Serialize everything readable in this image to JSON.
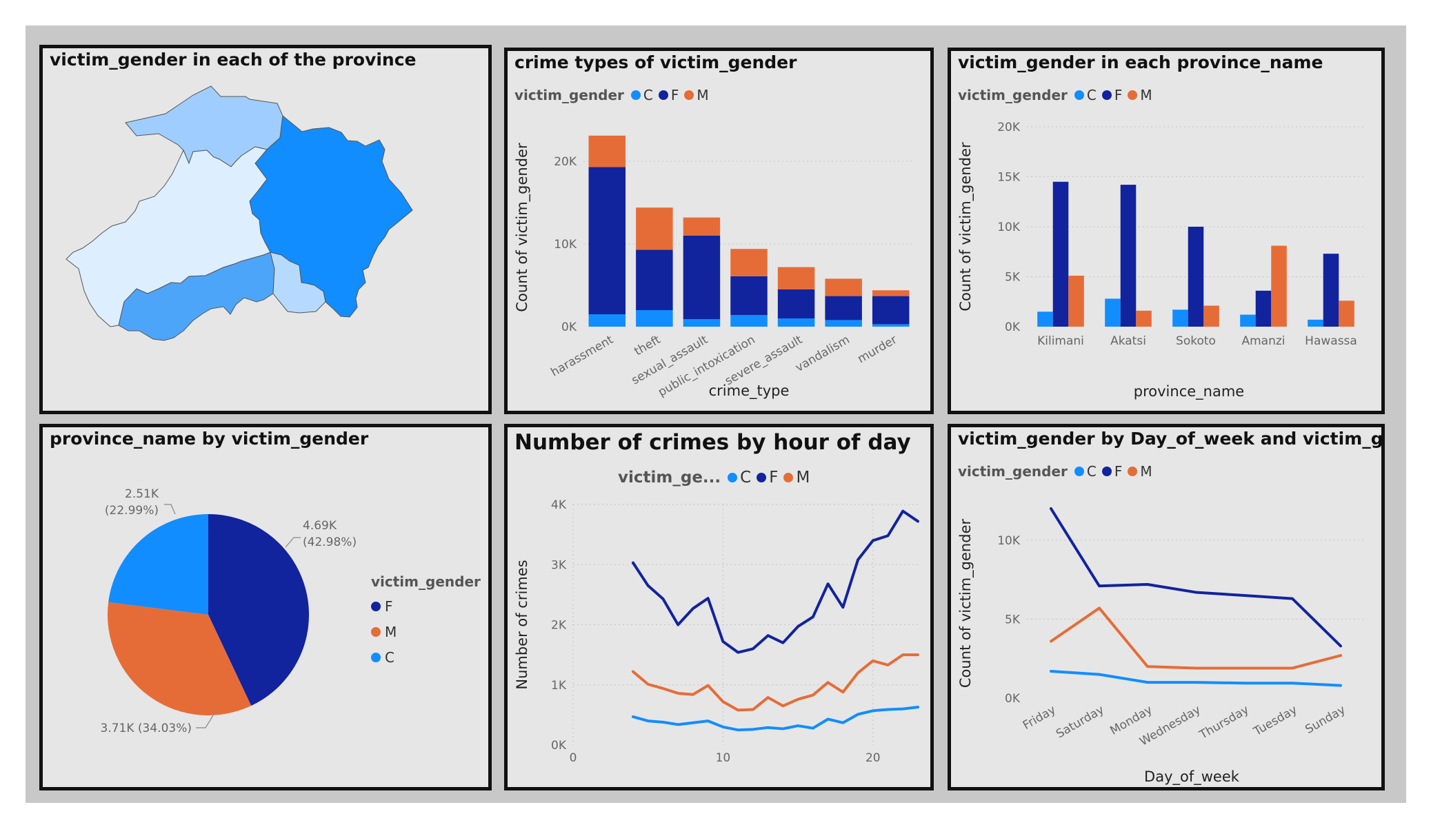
{
  "colors": {
    "C": "#118dff",
    "F": "#12239e",
    "M": "#e66c37"
  },
  "panels": {
    "map": {
      "title": "victim_gender in each of the province",
      "regions": [
        {
          "name": "north-west region",
          "fill": "#a0cdff"
        },
        {
          "name": "east region",
          "fill": "#118dff"
        },
        {
          "name": "central region",
          "fill": "#ddeeff"
        },
        {
          "name": "south region",
          "fill": "#4da5f9"
        },
        {
          "name": "south-east small region",
          "fill": "#b6daff"
        }
      ]
    },
    "crime_types": {
      "title": "crime types of victim_gender",
      "legend_title": "victim_gender",
      "legend": [
        "C",
        "F",
        "M"
      ]
    },
    "province": {
      "title": "victim_gender in each province_name",
      "legend_title": "victim_gender",
      "legend": [
        "C",
        "F",
        "M"
      ]
    },
    "pie": {
      "title": "province_name by victim_gender",
      "legend_title": "victim_gender",
      "legend": [
        "F",
        "M",
        "C"
      ],
      "labels": {
        "F": [
          "4.69K",
          "(42.98%)"
        ],
        "C": [
          "2.51K",
          "(22.99%)"
        ],
        "M": [
          "3.71K (34.03%)"
        ]
      }
    },
    "hour": {
      "title": "Number of crimes by hour of day",
      "legend_title": "victim_ge...",
      "legend": [
        "C",
        "F",
        "M"
      ]
    },
    "dow": {
      "title": "victim_gender by Day_of_week and victim_gender",
      "legend_title": "victim_gender",
      "legend": [
        "C",
        "F",
        "M"
      ]
    }
  },
  "chart_data": [
    {
      "type": "bar",
      "stacked": true,
      "title": "crime types of victim_gender",
      "xlabel": "crime_type",
      "ylabel": "Count of victim_gender",
      "ylim": [
        0,
        24000
      ],
      "yticks": [
        0,
        10000,
        20000
      ],
      "ytick_labels": [
        "0K",
        "10K",
        "20K"
      ],
      "categories": [
        "harassment",
        "theft",
        "sexual_assault",
        "public_intoxication",
        "severe_assault",
        "vandalism",
        "murder"
      ],
      "series": [
        {
          "name": "C",
          "values": [
            1500,
            2000,
            900,
            1400,
            1000,
            800,
            300
          ]
        },
        {
          "name": "F",
          "values": [
            17800,
            7300,
            10100,
            4700,
            3500,
            2900,
            3400
          ]
        },
        {
          "name": "M",
          "values": [
            3800,
            5100,
            2200,
            3300,
            2700,
            2100,
            700
          ]
        }
      ]
    },
    {
      "type": "bar",
      "stacked": false,
      "title": "victim_gender in each province_name",
      "xlabel": "province_name",
      "ylabel": "Count of victim_gender",
      "ylim": [
        0,
        20000
      ],
      "yticks": [
        0,
        5000,
        10000,
        15000,
        20000
      ],
      "ytick_labels": [
        "0K",
        "5K",
        "10K",
        "15K",
        "20K"
      ],
      "categories": [
        "Kilimani",
        "Akatsi",
        "Sokoto",
        "Amanzi",
        "Hawassa"
      ],
      "series": [
        {
          "name": "C",
          "values": [
            1500,
            2800,
            1700,
            1200,
            700
          ]
        },
        {
          "name": "F",
          "values": [
            14500,
            14200,
            10000,
            3600,
            7300
          ]
        },
        {
          "name": "M",
          "values": [
            5100,
            1600,
            2100,
            8100,
            2600
          ]
        }
      ]
    },
    {
      "type": "pie",
      "title": "province_name by victim_gender",
      "categories": [
        "F",
        "M",
        "C"
      ],
      "values": [
        4690,
        3710,
        2510
      ],
      "percentages": [
        42.98,
        34.03,
        22.99
      ]
    },
    {
      "type": "line",
      "title": "Number of crimes by hour of day",
      "xlabel": "",
      "ylabel": "Number of crimes",
      "xlim": [
        0,
        23
      ],
      "xticks": [
        0,
        10,
        20
      ],
      "ylim": [
        0,
        4000
      ],
      "yticks": [
        0,
        1000,
        2000,
        3000,
        4000
      ],
      "ytick_labels": [
        "0K",
        "1K",
        "2K",
        "3K",
        "4K"
      ],
      "x": [
        4,
        5,
        6,
        7,
        8,
        9,
        10,
        11,
        12,
        13,
        14,
        15,
        16,
        17,
        18,
        19,
        20,
        21,
        22,
        23
      ],
      "series": [
        {
          "name": "F",
          "values": [
            3030,
            2650,
            2430,
            2000,
            2270,
            2440,
            1720,
            1540,
            1600,
            1820,
            1700,
            1970,
            2130,
            2680,
            2290,
            3080,
            3400,
            3480,
            3890,
            3720
          ]
        },
        {
          "name": "M",
          "values": [
            1220,
            1010,
            940,
            860,
            840,
            990,
            720,
            580,
            590,
            790,
            650,
            760,
            830,
            1040,
            880,
            1200,
            1400,
            1330,
            1500,
            1500
          ]
        },
        {
          "name": "C",
          "values": [
            470,
            400,
            380,
            340,
            370,
            400,
            300,
            250,
            260,
            290,
            270,
            320,
            280,
            430,
            370,
            510,
            570,
            590,
            600,
            630
          ]
        }
      ]
    },
    {
      "type": "line",
      "title": "victim_gender by Day_of_week and victim_gender",
      "xlabel": "Day_of_week",
      "ylabel": "Count of victim_gender",
      "ylim": [
        0,
        12000
      ],
      "yticks": [
        0,
        5000,
        10000
      ],
      "ytick_labels": [
        "0K",
        "5K",
        "10K"
      ],
      "categories": [
        "Friday",
        "Saturday",
        "Monday",
        "Wednesday",
        "Thursday",
        "Tuesday",
        "Sunday"
      ],
      "series": [
        {
          "name": "F",
          "values": [
            12000,
            7100,
            7200,
            6700,
            6500,
            6300,
            3300
          ]
        },
        {
          "name": "M",
          "values": [
            3600,
            5700,
            2000,
            1900,
            1900,
            1900,
            2700
          ]
        },
        {
          "name": "C",
          "values": [
            1700,
            1500,
            1000,
            1000,
            950,
            950,
            800
          ]
        }
      ]
    }
  ]
}
